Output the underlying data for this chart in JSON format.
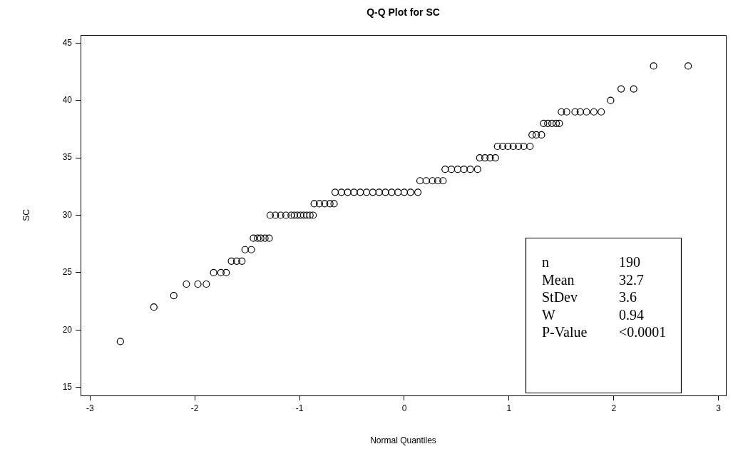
{
  "chart_data": {
    "type": "scatter",
    "title": "Q-Q Plot for SC",
    "xlabel": "Normal Quantiles",
    "ylabel": "SC",
    "series": [
      {
        "color": "#000000",
        "x": [
          -2.71,
          -2.39,
          -2.2,
          -2.08,
          -1.97,
          -1.89,
          -1.82,
          -1.75,
          -1.7,
          -1.65,
          -1.6,
          -1.55,
          -1.52,
          -1.46,
          -1.44,
          -1.4,
          -1.37,
          -1.33,
          -1.29,
          -1.28,
          -1.23,
          -1.18,
          -1.13,
          -1.08,
          -1.05,
          -1.02,
          -0.99,
          -0.96,
          -0.93,
          -0.9,
          -0.87,
          -0.86,
          -0.81,
          -0.76,
          -0.71,
          -0.67,
          -0.66,
          -0.6,
          -0.54,
          -0.48,
          -0.42,
          -0.36,
          -0.3,
          -0.24,
          -0.18,
          -0.12,
          -0.06,
          0.0,
          0.06,
          0.13,
          0.15,
          0.21,
          0.27,
          0.32,
          0.37,
          0.39,
          0.45,
          0.51,
          0.57,
          0.63,
          0.7,
          0.72,
          0.77,
          0.82,
          0.87,
          0.89,
          0.94,
          0.99,
          1.04,
          1.09,
          1.14,
          1.2,
          1.22,
          1.26,
          1.31,
          1.33,
          1.37,
          1.41,
          1.45,
          1.48,
          1.5,
          1.55,
          1.63,
          1.68,
          1.74,
          1.81,
          1.88,
          1.97,
          2.07,
          2.19,
          2.38,
          2.71
        ],
        "values": [
          19,
          22,
          23,
          24,
          24,
          24,
          25,
          25,
          25,
          26,
          26,
          26,
          27,
          27,
          28,
          28,
          28,
          28,
          28,
          30,
          30,
          30,
          30,
          30,
          30,
          30,
          30,
          30,
          30,
          30,
          30,
          31,
          31,
          31,
          31,
          31,
          32,
          32,
          32,
          32,
          32,
          32,
          32,
          32,
          32,
          32,
          32,
          32,
          32,
          32,
          33,
          33,
          33,
          33,
          33,
          34,
          34,
          34,
          34,
          34,
          34,
          35,
          35,
          35,
          35,
          36,
          36,
          36,
          36,
          36,
          36,
          36,
          37,
          37,
          37,
          38,
          38,
          38,
          38,
          38,
          39,
          39,
          39,
          39,
          39,
          39,
          39,
          40,
          41,
          41,
          43,
          43
        ]
      }
    ],
    "xlim": [
      -3.09,
      3.07
    ],
    "xticks": [
      -3,
      -2,
      -1,
      0,
      1,
      2,
      3
    ],
    "ylim": [
      14.3,
      45.7
    ],
    "yticks": [
      15,
      20,
      25,
      30,
      35,
      40,
      45
    ],
    "marker": "circle",
    "grid": false,
    "legend": false,
    "annotations": [
      "n",
      "190",
      "Mean",
      "32.7",
      "StDev",
      "3.6",
      "W",
      "0.94",
      "P-Value",
      "<0.0001"
    ]
  }
}
